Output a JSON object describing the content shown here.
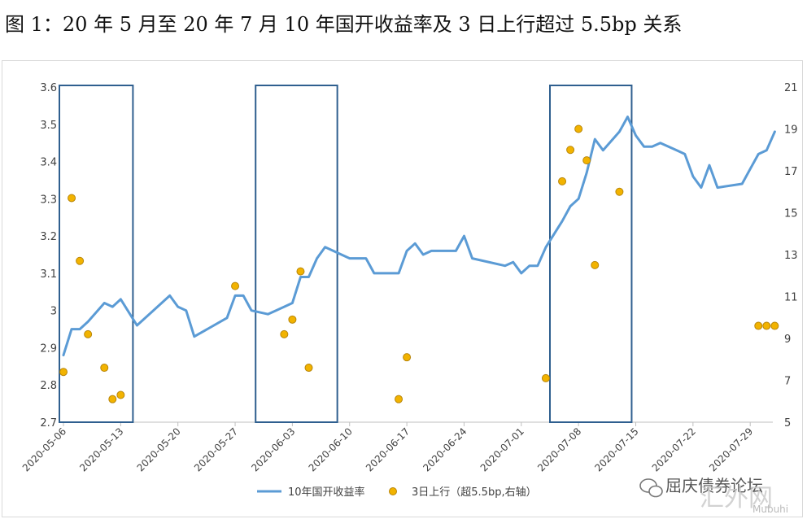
{
  "title": "图 1：20 年 5 月至 20 年 7 月 10 年国开收益率及 3 日上行超过 5.5bp 关系",
  "colors": {
    "line": "#5b9bd5",
    "dots": "#f2b300",
    "dot_edge": "#b8860b",
    "box": "#2f5f8f"
  },
  "watermark": {
    "account": "屈庆债券论坛",
    "big": "汇外网",
    "small": "Mubuhi"
  },
  "chart_data": {
    "type": "line",
    "xlabel": "",
    "ylabel_left": "",
    "ylabel_right": "",
    "ylim_left": [
      2.7,
      3.6
    ],
    "ylim_right": [
      5,
      21
    ],
    "y_ticks_left": [
      "2.7",
      "2.8",
      "2.9",
      "3",
      "3.1",
      "3.2",
      "3.3",
      "3.4",
      "3.5",
      "3.6"
    ],
    "y_ticks_right": [
      "5",
      "7",
      "9",
      "11",
      "13",
      "15",
      "17",
      "19",
      "21"
    ],
    "x_ticks": [
      "2020-05-06",
      "2020-05-13",
      "2020-05-20",
      "2020-05-27",
      "2020-06-03",
      "2020-06-10",
      "2020-06-17",
      "2020-06-24",
      "2020-07-01",
      "2020-07-08",
      "2020-07-15",
      "2020-07-22",
      "2020-07-29"
    ],
    "x_range": [
      "2020-05-06",
      "2020-07-31"
    ],
    "legend_position": "bottom",
    "series": [
      {
        "name": "10年国开收益率",
        "axis": "left",
        "type": "line",
        "points": [
          [
            "2020-05-06",
            2.88
          ],
          [
            "2020-05-07",
            2.95
          ],
          [
            "2020-05-08",
            2.95
          ],
          [
            "2020-05-09",
            2.97
          ],
          [
            "2020-05-11",
            3.02
          ],
          [
            "2020-05-12",
            3.01
          ],
          [
            "2020-05-13",
            3.03
          ],
          [
            "2020-05-15",
            2.96
          ],
          [
            "2020-05-19",
            3.04
          ],
          [
            "2020-05-20",
            3.01
          ],
          [
            "2020-05-21",
            3.0
          ],
          [
            "2020-05-22",
            2.93
          ],
          [
            "2020-05-26",
            2.98
          ],
          [
            "2020-05-27",
            3.04
          ],
          [
            "2020-05-28",
            3.04
          ],
          [
            "2020-05-29",
            3.0
          ],
          [
            "2020-05-31",
            2.99
          ],
          [
            "2020-06-01",
            3.0
          ],
          [
            "2020-06-02",
            3.01
          ],
          [
            "2020-06-03",
            3.02
          ],
          [
            "2020-06-04",
            3.09
          ],
          [
            "2020-06-05",
            3.09
          ],
          [
            "2020-06-06",
            3.14
          ],
          [
            "2020-06-07",
            3.17
          ],
          [
            "2020-06-08",
            3.16
          ],
          [
            "2020-06-09",
            3.15
          ],
          [
            "2020-06-10",
            3.14
          ],
          [
            "2020-06-11",
            3.14
          ],
          [
            "2020-06-12",
            3.14
          ],
          [
            "2020-06-13",
            3.1
          ],
          [
            "2020-06-14",
            3.1
          ],
          [
            "2020-06-16",
            3.1
          ],
          [
            "2020-06-17",
            3.16
          ],
          [
            "2020-06-18",
            3.18
          ],
          [
            "2020-06-19",
            3.15
          ],
          [
            "2020-06-20",
            3.16
          ],
          [
            "2020-06-22",
            3.16
          ],
          [
            "2020-06-23",
            3.16
          ],
          [
            "2020-06-24",
            3.2
          ],
          [
            "2020-06-25",
            3.14
          ],
          [
            "2020-06-29",
            3.12
          ],
          [
            "2020-06-30",
            3.13
          ],
          [
            "2020-07-01",
            3.1
          ],
          [
            "2020-07-02",
            3.12
          ],
          [
            "2020-07-03",
            3.12
          ],
          [
            "2020-07-04",
            3.17
          ],
          [
            "2020-07-06",
            3.24
          ],
          [
            "2020-07-07",
            3.28
          ],
          [
            "2020-07-08",
            3.3
          ],
          [
            "2020-07-09",
            3.37
          ],
          [
            "2020-07-10",
            3.46
          ],
          [
            "2020-07-11",
            3.43
          ],
          [
            "2020-07-13",
            3.48
          ],
          [
            "2020-07-14",
            3.52
          ],
          [
            "2020-07-15",
            3.47
          ],
          [
            "2020-07-16",
            3.44
          ],
          [
            "2020-07-17",
            3.44
          ],
          [
            "2020-07-18",
            3.45
          ],
          [
            "2020-07-20",
            3.43
          ],
          [
            "2020-07-21",
            3.42
          ],
          [
            "2020-07-22",
            3.36
          ],
          [
            "2020-07-23",
            3.33
          ],
          [
            "2020-07-24",
            3.39
          ],
          [
            "2020-07-25",
            3.33
          ],
          [
            "2020-07-28",
            3.34
          ],
          [
            "2020-07-29",
            3.38
          ],
          [
            "2020-07-30",
            3.42
          ],
          [
            "2020-07-31",
            3.43
          ],
          [
            "2020-08-01",
            3.48
          ]
        ]
      },
      {
        "name": "3日上行（超5.5bp,右轴）",
        "axis": "right",
        "type": "scatter",
        "points": [
          [
            "2020-05-06",
            7.4
          ],
          [
            "2020-05-07",
            15.7
          ],
          [
            "2020-05-08",
            12.7
          ],
          [
            "2020-05-09",
            9.2
          ],
          [
            "2020-05-11",
            7.6
          ],
          [
            "2020-05-12",
            6.1
          ],
          [
            "2020-05-13",
            6.3
          ],
          [
            "2020-05-27",
            11.5
          ],
          [
            "2020-06-02",
            9.2
          ],
          [
            "2020-06-03",
            9.9
          ],
          [
            "2020-06-04",
            12.2
          ],
          [
            "2020-06-05",
            7.6
          ],
          [
            "2020-06-16",
            6.1
          ],
          [
            "2020-06-17",
            8.1
          ],
          [
            "2020-07-04",
            7.1
          ],
          [
            "2020-07-06",
            16.5
          ],
          [
            "2020-07-07",
            18.0
          ],
          [
            "2020-07-08",
            19.0
          ],
          [
            "2020-07-09",
            17.5
          ],
          [
            "2020-07-10",
            12.5
          ],
          [
            "2020-07-13",
            16.0
          ],
          [
            "2020-07-30",
            9.6
          ],
          [
            "2020-07-31",
            9.6
          ],
          [
            "2020-08-01",
            9.6
          ]
        ]
      }
    ],
    "highlight_boxes": [
      {
        "start": "2020-05-06",
        "end": "2020-05-14"
      },
      {
        "start": "2020-05-30",
        "end": "2020-06-08"
      },
      {
        "start": "2020-07-05",
        "end": "2020-07-14"
      }
    ]
  }
}
